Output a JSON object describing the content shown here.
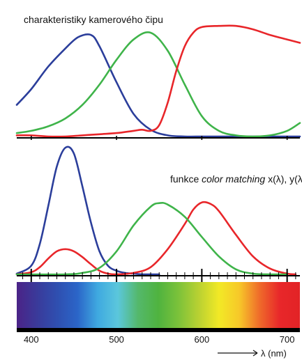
{
  "chart_data": [
    {
      "type": "line",
      "title": "charakteristiky kamerového čipu",
      "xlim": [
        383,
        715
      ],
      "ylim": [
        0,
        1
      ],
      "grid": false,
      "series": [
        {
          "color": "#2b3e9b",
          "x": [
            383,
            400,
            420,
            440,
            455,
            470,
            480,
            500,
            520,
            540,
            560,
            580,
            600,
            620,
            640,
            660,
            680,
            700,
            715
          ],
          "y": [
            0.28,
            0.42,
            0.62,
            0.78,
            0.88,
            0.9,
            0.8,
            0.48,
            0.2,
            0.06,
            0.01,
            0.0,
            0.0,
            0.0,
            0.0,
            0.0,
            0.0,
            0.0,
            0.0
          ]
        },
        {
          "color": "#3fb44a",
          "x": [
            383,
            400,
            420,
            440,
            460,
            480,
            500,
            520,
            540,
            560,
            580,
            600,
            620,
            640,
            660,
            680,
            700,
            715
          ],
          "y": [
            0.03,
            0.05,
            0.09,
            0.16,
            0.28,
            0.46,
            0.68,
            0.86,
            0.92,
            0.76,
            0.46,
            0.18,
            0.05,
            0.01,
            0.0,
            0.01,
            0.05,
            0.12
          ]
        },
        {
          "color": "#e8262a",
          "x": [
            383,
            400,
            420,
            440,
            460,
            480,
            500,
            520,
            530,
            540,
            550,
            560,
            570,
            580,
            590,
            600,
            620,
            640,
            660,
            680,
            700,
            715
          ],
          "y": [
            0.01,
            0.01,
            0.0,
            0.0,
            0.01,
            0.02,
            0.03,
            0.05,
            0.06,
            0.05,
            0.1,
            0.3,
            0.58,
            0.8,
            0.92,
            0.97,
            0.98,
            0.98,
            0.95,
            0.9,
            0.86,
            0.83
          ]
        }
      ]
    },
    {
      "type": "line",
      "title_parts": [
        "funkce ",
        "color matching",
        " x(λ), y(λ) a z(λ)"
      ],
      "xlim": [
        383,
        715
      ],
      "ylim": [
        0,
        1.8
      ],
      "grid": false,
      "x_ticks": [
        400,
        500,
        600,
        700
      ],
      "x_tick_labels": [
        "400",
        "500",
        "600",
        "700"
      ],
      "xlabel": "λ (nm)",
      "series": [
        {
          "color": "#2b3e9b",
          "x": [
            383,
            400,
            410,
            420,
            430,
            440,
            450,
            460,
            470,
            480,
            490,
            500,
            510,
            520,
            530,
            540,
            550
          ],
          "y": [
            0.01,
            0.12,
            0.42,
            0.95,
            1.5,
            1.76,
            1.68,
            1.22,
            0.72,
            0.32,
            0.12,
            0.05,
            0.02,
            0.01,
            0.0,
            0.0,
            0.0
          ]
        },
        {
          "color": "#e8262a",
          "x": [
            383,
            400,
            410,
            420,
            430,
            440,
            450,
            460,
            470,
            480,
            490,
            500,
            520,
            540,
            560,
            580,
            590,
            600,
            610,
            620,
            640,
            660,
            680,
            700,
            710
          ],
          "y": [
            0.0,
            0.03,
            0.1,
            0.22,
            0.32,
            0.35,
            0.32,
            0.24,
            0.14,
            0.05,
            0.01,
            0.0,
            0.02,
            0.1,
            0.35,
            0.7,
            0.9,
            1.0,
            0.98,
            0.88,
            0.55,
            0.25,
            0.08,
            0.01,
            0.0
          ]
        },
        {
          "color": "#3fb44a",
          "x": [
            383,
            440,
            460,
            480,
            500,
            520,
            540,
            550,
            560,
            580,
            600,
            620,
            640,
            660,
            680,
            700
          ],
          "y": [
            0.0,
            0.0,
            0.02,
            0.09,
            0.32,
            0.68,
            0.94,
            0.99,
            0.97,
            0.8,
            0.52,
            0.25,
            0.07,
            0.01,
            0.0,
            0.0
          ]
        }
      ]
    }
  ],
  "colors": {
    "spectrum": [
      "#4b2387",
      "#3a3a9a",
      "#2f4fb0",
      "#2b65c8",
      "#3fa9e0",
      "#5bc7dc",
      "#54b86b",
      "#4fb33f",
      "#7cc23a",
      "#b9d132",
      "#f2e926",
      "#f7c829",
      "#ef6b2a",
      "#e8272a",
      "#e22326"
    ]
  }
}
